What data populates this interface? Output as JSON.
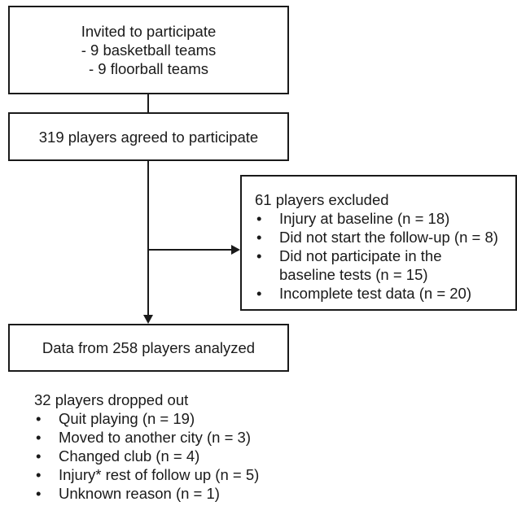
{
  "invited": {
    "lines": [
      "Invited to participate",
      "- 9 basketball teams",
      "- 9 floorball teams"
    ]
  },
  "agreed": {
    "text": "319 players agreed to participate"
  },
  "excluded": {
    "title": "61 players excluded",
    "items": [
      [
        "Injury at baseline (n = 18)"
      ],
      [
        "Did not start the follow-up (n = 8)"
      ],
      [
        "Did not participate in the",
        "baseline tests (n = 15)"
      ],
      [
        "Incomplete test data (n = 20)"
      ]
    ]
  },
  "analyzed": {
    "text": "Data from 258 players analyzed"
  },
  "dropped": {
    "title": "32 players dropped out",
    "items": [
      "Quit playing (n = 19)",
      "Moved to another city (n = 3)",
      "Changed club (n = 4)",
      "Injury* rest of follow up (n = 5)",
      "Unknown reason (n = 1)"
    ]
  },
  "bullet_glyph": "•"
}
